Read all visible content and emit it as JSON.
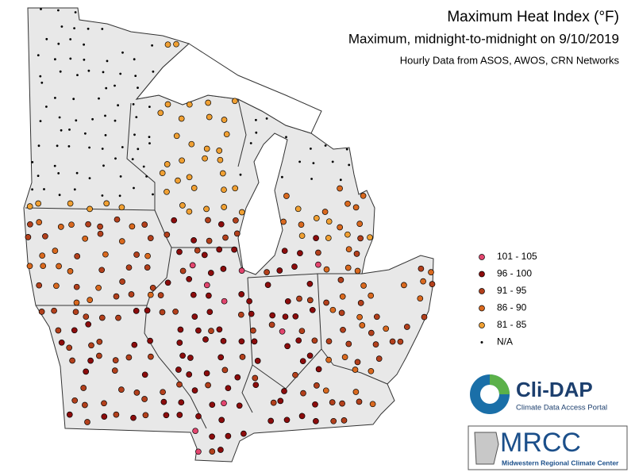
{
  "title": "Maximum Heat Index (°F)",
  "subtitle": "Maximum, midnight-to-midnight on 9/10/2019",
  "source": "Hourly Data from ASOS, AWOS, CRN Networks",
  "legend": [
    {
      "label": "101 - 105",
      "color": "#e2456e"
    },
    {
      "label": "96 - 100",
      "color": "#8c0c0c"
    },
    {
      "label": "91 - 95",
      "color": "#b3401c"
    },
    {
      "label": "86 - 90",
      "color": "#d9691f"
    },
    {
      "label": "81 - 85",
      "color": "#f0a033"
    },
    {
      "label": "N/A",
      "color": "#000000"
    }
  ],
  "logos": {
    "clidap": {
      "name": "Cli-DAP",
      "tagline": "Climate Data Access Portal"
    },
    "mrcc": {
      "name": "MRCC",
      "tagline": "Midwestern Regional Climate Center"
    }
  }
}
